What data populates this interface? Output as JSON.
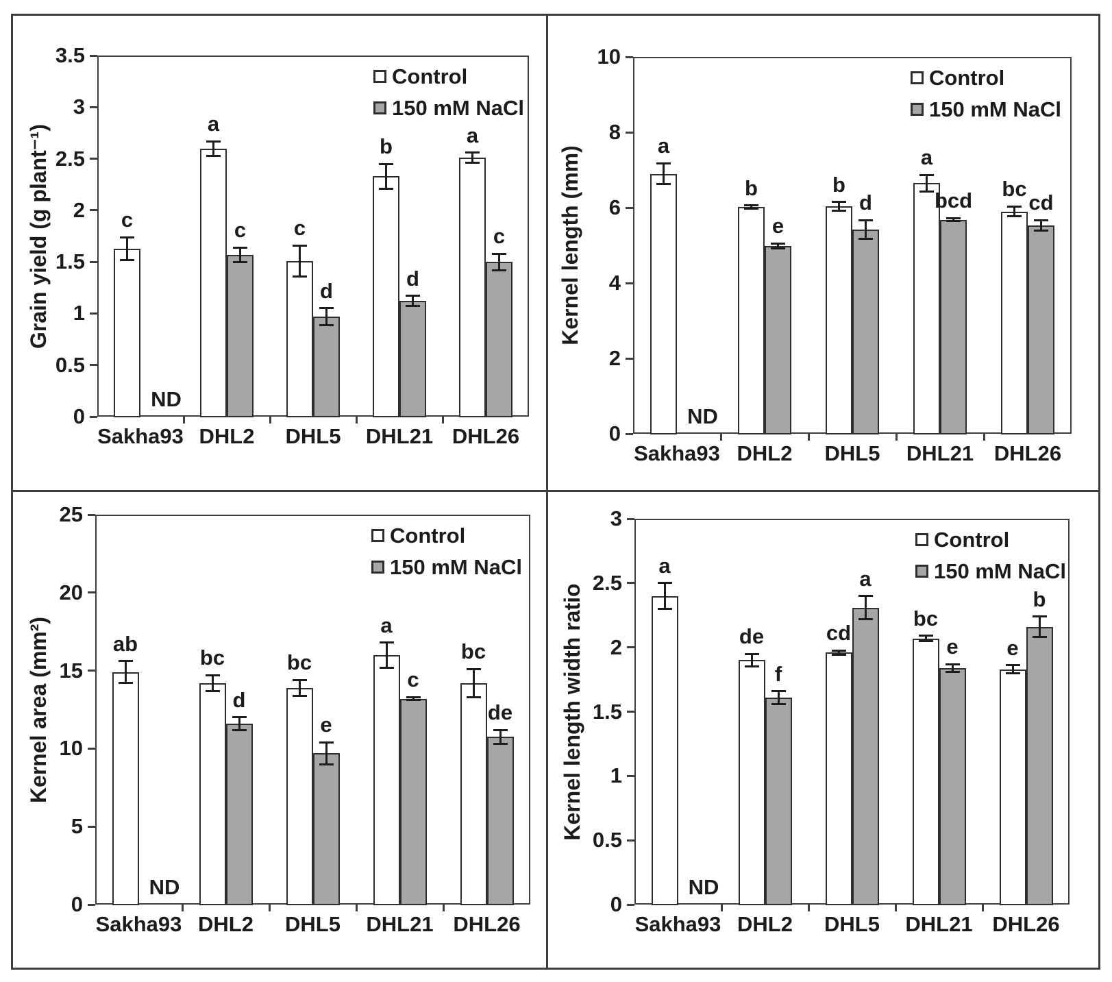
{
  "figure": {
    "description": "Four-panel bar chart figure comparing wheat genotypes under control and salt stress",
    "treatments": [
      "Control",
      "150 mM NaCl"
    ],
    "genotypes": [
      "Sakha93",
      "DHL2",
      "DHL5",
      "DHL21",
      "DHL26"
    ]
  },
  "colors": {
    "control_fill": "#ffffff",
    "nacl_fill": "#a6a6a6",
    "bar_outline": "#2e2e2e",
    "axis": "#3f3f3f",
    "text": "#1c1c1c"
  },
  "chart_data": [
    {
      "type": "bar",
      "name": "grain-yield",
      "title": "",
      "xlabel": "",
      "ylabel": "Grain yield (g plant⁻¹)",
      "ylim": [
        0,
        3.5
      ],
      "yticks": [
        0,
        0.5,
        1,
        1.5,
        2,
        2.5,
        3,
        3.5
      ],
      "ytick_labels": [
        "0",
        "0.5",
        "1",
        "1.5",
        "2",
        "2.5",
        "3",
        "3.5"
      ],
      "categories": [
        "Sakha93",
        "DHL2",
        "DHL5",
        "DHL21",
        "DHL26"
      ],
      "grid": false,
      "legend_position": "top-right",
      "nd_label": "ND",
      "nd_category_index": 0,
      "series": [
        {
          "name": "Control",
          "fill": "#ffffff",
          "values": [
            1.63,
            2.6,
            1.51,
            2.33,
            2.51
          ],
          "errors": [
            0.11,
            0.07,
            0.15,
            0.12,
            0.05
          ],
          "letters": [
            "c",
            "a",
            "c",
            "b",
            "a"
          ]
        },
        {
          "name": "150 mM NaCl",
          "fill": "#a6a6a6",
          "values": [
            null,
            1.57,
            0.97,
            1.12,
            1.5
          ],
          "errors": [
            null,
            0.07,
            0.08,
            0.05,
            0.08
          ],
          "letters": [
            null,
            "c",
            "d",
            "d",
            "c"
          ]
        }
      ]
    },
    {
      "type": "bar",
      "name": "kernel-length",
      "title": "",
      "xlabel": "",
      "ylabel": "Kernel length (mm)",
      "ylim": [
        0,
        10
      ],
      "yticks": [
        0,
        2,
        4,
        6,
        8,
        10
      ],
      "ytick_labels": [
        "0",
        "2",
        "4",
        "6",
        "8",
        "10"
      ],
      "categories": [
        "Sakha93",
        "DHL2",
        "DHL5",
        "DHL21",
        "DHL26"
      ],
      "grid": false,
      "legend_position": "top-right",
      "nd_label": "ND",
      "nd_category_index": 0,
      "series": [
        {
          "name": "Control",
          "fill": "#ffffff",
          "values": [
            6.9,
            6.02,
            6.03,
            6.65,
            5.9
          ],
          "errors": [
            0.28,
            0.04,
            0.12,
            0.22,
            0.13
          ],
          "letters": [
            "a",
            "b",
            "b",
            "a",
            "bc"
          ]
        },
        {
          "name": "150 mM NaCl",
          "fill": "#a6a6a6",
          "values": [
            null,
            4.98,
            5.42,
            5.68,
            5.53
          ],
          "errors": [
            null,
            0.07,
            0.25,
            0.04,
            0.14
          ],
          "letters": [
            null,
            "e",
            "d",
            "bcd",
            "cd"
          ]
        }
      ]
    },
    {
      "type": "bar",
      "name": "kernel-area",
      "title": "",
      "xlabel": "",
      "ylabel": "Kernel area (mm²)",
      "ylim": [
        0,
        25
      ],
      "yticks": [
        0,
        5,
        10,
        15,
        20,
        25
      ],
      "ytick_labels": [
        "0",
        "5",
        "10",
        "15",
        "20",
        "25"
      ],
      "categories": [
        "Sakha93",
        "DHL2",
        "DHL5",
        "DHL21",
        "DHL26"
      ],
      "grid": false,
      "legend_position": "top-right",
      "nd_label": "ND",
      "nd_category_index": 0,
      "series": [
        {
          "name": "Control",
          "fill": "#ffffff",
          "values": [
            14.9,
            14.2,
            13.9,
            16.0,
            14.2
          ],
          "errors": [
            0.7,
            0.5,
            0.5,
            0.8,
            0.9
          ],
          "letters": [
            "ab",
            "bc",
            "bc",
            "a",
            "bc"
          ]
        },
        {
          "name": "150 mM NaCl",
          "fill": "#a6a6a6",
          "values": [
            null,
            11.6,
            9.7,
            13.2,
            10.75
          ],
          "errors": [
            null,
            0.4,
            0.7,
            0.1,
            0.45
          ],
          "letters": [
            null,
            "d",
            "e",
            "c",
            "de"
          ]
        }
      ]
    },
    {
      "type": "bar",
      "name": "kernel-length-width-ratio",
      "title": "",
      "xlabel": "",
      "ylabel": "Kernel length width ratio",
      "ylim": [
        0,
        3
      ],
      "yticks": [
        0,
        0.5,
        1,
        1.5,
        2,
        2.5,
        3
      ],
      "ytick_labels": [
        "0",
        "0.5",
        "1",
        "1.5",
        "2",
        "2.5",
        "3"
      ],
      "categories": [
        "Sakha93",
        "DHL2",
        "DHL5",
        "DHL21",
        "DHL26"
      ],
      "grid": false,
      "legend_position": "top-right",
      "nd_label": "ND",
      "nd_category_index": 0,
      "series": [
        {
          "name": "Control",
          "fill": "#ffffff",
          "values": [
            2.4,
            1.9,
            1.96,
            2.07,
            1.83
          ],
          "errors": [
            0.1,
            0.05,
            0.015,
            0.02,
            0.03
          ],
          "letters": [
            "a",
            "de",
            "cd",
            "bc",
            "e"
          ]
        },
        {
          "name": "150 mM NaCl",
          "fill": "#a6a6a6",
          "values": [
            null,
            1.61,
            2.31,
            1.84,
            2.16
          ],
          "errors": [
            null,
            0.05,
            0.09,
            0.03,
            0.08
          ],
          "letters": [
            null,
            "f",
            "a",
            "e",
            "b"
          ]
        }
      ]
    }
  ]
}
